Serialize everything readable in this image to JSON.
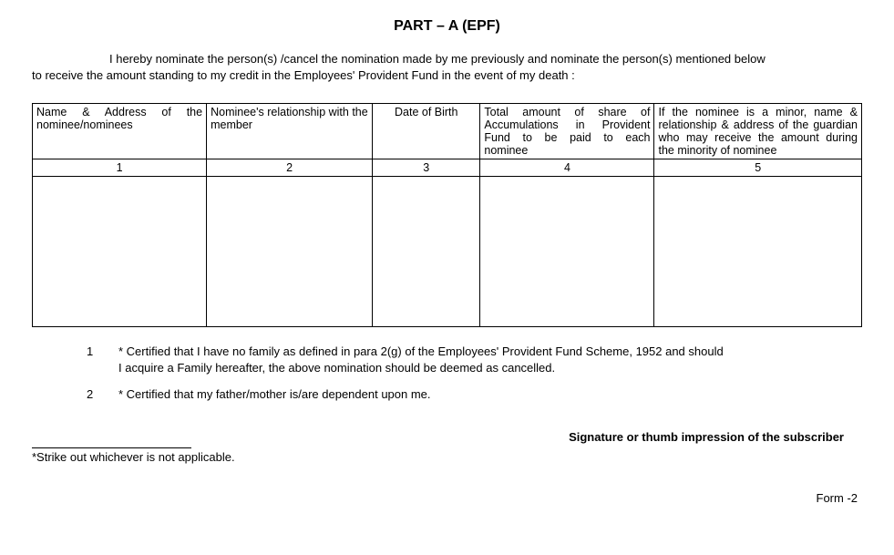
{
  "title": "PART – A (EPF)",
  "declaration": {
    "line1": "I hereby nominate the person(s) /cancel the nomination made by me previously and nominate the person(s) mentioned below",
    "line2": "to receive the amount standing to my credit in the Employees' Provident Fund in the event of my death  :"
  },
  "table": {
    "headers": {
      "col1": "Name & Address of the nominee/nominees",
      "col2": "Nominee's relationship with the member",
      "col3": "Date of Birth",
      "col4": "Total amount of share of Accumulations in Provident Fund to be paid to each nominee",
      "col5": "If the nominee is a minor, name & relationship & address of the guardian who may receive the amount during the minority of nominee"
    },
    "nums": {
      "c1": "1",
      "c2": "2",
      "c3": "3",
      "c4": "4",
      "c5": "5"
    },
    "widths": {
      "col1": "21%",
      "col2": "20%",
      "col3": "13%",
      "col4": "21%",
      "col5": "25%"
    }
  },
  "cert": {
    "item1": {
      "num": "1",
      "line1": "* Certified that I have no family as defined in para 2(g) of the Employees' Provident Fund Scheme, 1952 and should",
      "line2": "I acquire a Family hereafter, the above nomination should be deemed as cancelled."
    },
    "item2": {
      "num": "2",
      "text": "* Certified that my father/mother is/are dependent upon me."
    }
  },
  "signature": "Signature or thumb impression of the subscriber",
  "footnote": "*Strike out whichever is not applicable.",
  "formLabel": "Form -2"
}
